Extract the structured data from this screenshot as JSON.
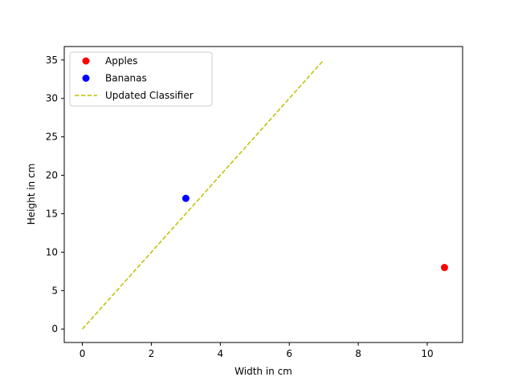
{
  "chart_data": {
    "type": "scatter",
    "title": "",
    "xlabel": "Width in cm",
    "ylabel": "Height in cm",
    "xlim": [
      -0.525,
      11.025
    ],
    "ylim": [
      -1.75,
      36.75
    ],
    "xticks": [
      0,
      2,
      4,
      6,
      8,
      10
    ],
    "yticks": [
      0,
      5,
      10,
      15,
      20,
      25,
      30,
      35
    ],
    "grid": false,
    "legend_position": "top-left",
    "series": [
      {
        "name": "Apples",
        "kind": "scatter",
        "color": "#ff0000",
        "points": [
          {
            "x": 10.5,
            "y": 8
          }
        ]
      },
      {
        "name": "Bananas",
        "kind": "scatter",
        "color": "#0000ff",
        "points": [
          {
            "x": 3,
            "y": 17
          }
        ]
      },
      {
        "name": "Updated Classifier",
        "kind": "line",
        "style": "dashed",
        "color": "#bfbf00",
        "points": [
          {
            "x": 0,
            "y": 0
          },
          {
            "x": 7,
            "y": 35
          }
        ]
      }
    ]
  }
}
